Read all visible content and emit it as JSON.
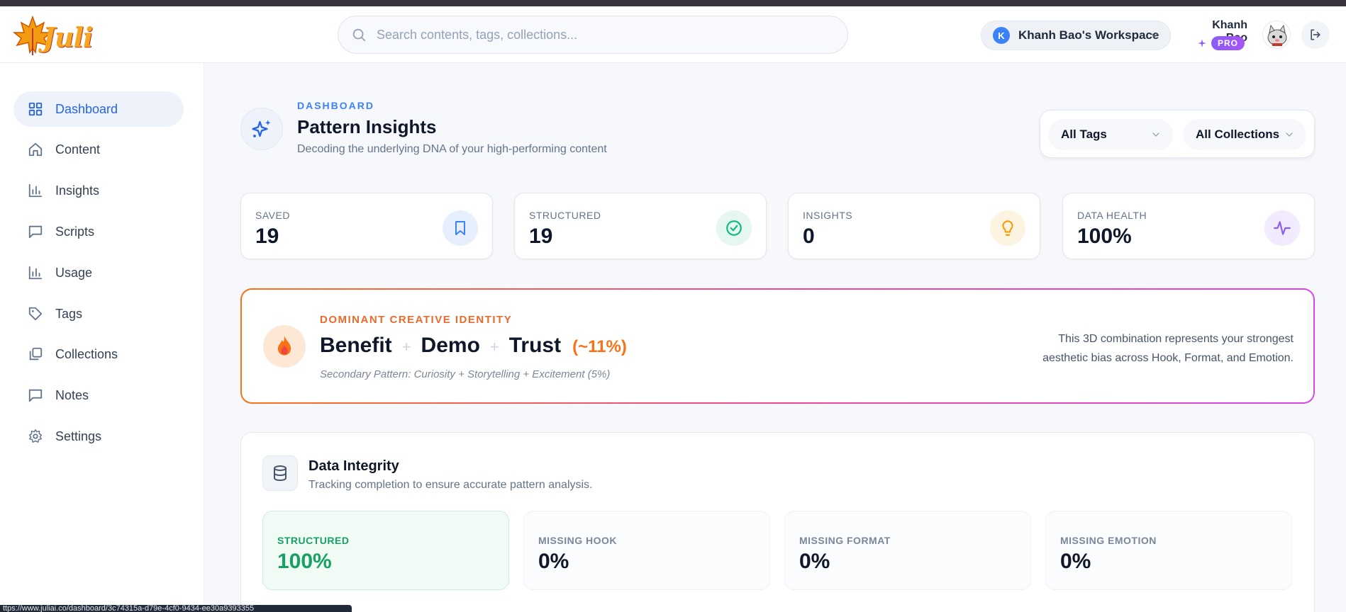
{
  "header": {
    "logo_text": "Juli",
    "search_placeholder": "Search contents, tags, collections...",
    "workspace": {
      "initial": "K",
      "name": "Khanh Bao's Workspace"
    },
    "user": {
      "name": "Khanh Bao",
      "badge": "PRO"
    }
  },
  "sidebar": {
    "items": [
      {
        "label": "Dashboard",
        "icon": "dashboard-grid-icon",
        "active": true
      },
      {
        "label": "Content",
        "icon": "home-icon"
      },
      {
        "label": "Insights",
        "icon": "bar-chart-icon"
      },
      {
        "label": "Scripts",
        "icon": "message-square-icon"
      },
      {
        "label": "Usage",
        "icon": "bar-chart-icon"
      },
      {
        "label": "Tags",
        "icon": "tag-icon"
      },
      {
        "label": "Collections",
        "icon": "collections-icon"
      },
      {
        "label": "Notes",
        "icon": "message-square-icon"
      },
      {
        "label": "Settings",
        "icon": "gear-icon"
      }
    ]
  },
  "page": {
    "eyebrow": "DASHBOARD",
    "title": "Pattern Insights",
    "subtitle": "Decoding the underlying DNA of your high-performing content"
  },
  "filters": {
    "tags": "All Tags",
    "collections": "All Collections"
  },
  "stats": [
    {
      "label": "SAVED",
      "value": "19",
      "icon": "bookmark-icon",
      "color": "#3b82f6"
    },
    {
      "label": "STRUCTURED",
      "value": "19",
      "icon": "check-circle-icon",
      "color": "#10b981"
    },
    {
      "label": "INSIGHTS",
      "value": "0",
      "icon": "lightbulb-icon",
      "color": "#f59e0b"
    },
    {
      "label": "DATA HEALTH",
      "value": "100%",
      "icon": "activity-icon",
      "color": "#8b5cf6"
    }
  ],
  "identity": {
    "eyebrow": "DOMINANT CREATIVE IDENTITY",
    "words": [
      "Benefit",
      "Demo",
      "Trust"
    ],
    "plus": "+",
    "percent": "(~11%)",
    "secondary": "Secondary Pattern: Curiosity + Storytelling + Excitement (5%)",
    "note_line1": "This 3D combination represents your strongest",
    "note_line2": "aesthetic bias across Hook, Format, and Emotion."
  },
  "integrity": {
    "title": "Data Integrity",
    "subtitle": "Tracking completion to ensure accurate pattern analysis.",
    "cards": [
      {
        "label": "STRUCTURED",
        "value": "100%"
      },
      {
        "label": "MISSING HOOK",
        "value": "0%"
      },
      {
        "label": "MISSING FORMAT",
        "value": "0%"
      },
      {
        "label": "MISSING EMOTION",
        "value": "0%"
      }
    ]
  },
  "status_bar_url": "ttps://www.juliai.co/dashboard/3c74315a-d79e-4cf0-9434-ee30a9393355"
}
